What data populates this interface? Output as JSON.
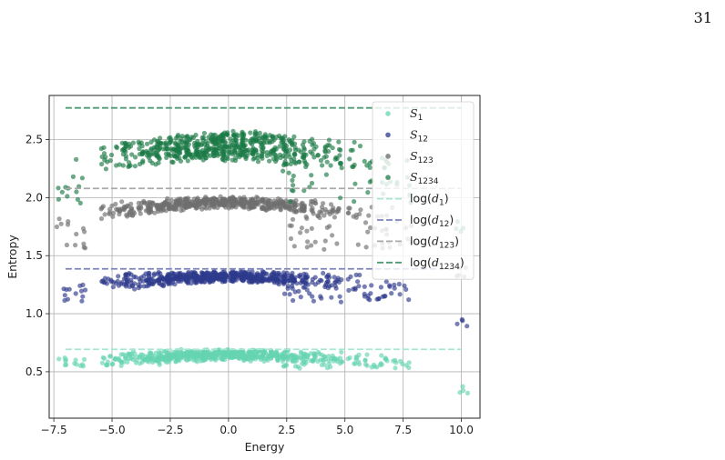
{
  "page": {
    "number": "31"
  },
  "chart_data": {
    "type": "scatter",
    "title": "",
    "xlabel": "Energy",
    "ylabel": "Entropy",
    "xlim": [
      -7.7,
      10.8
    ],
    "ylim": [
      0.1,
      2.88
    ],
    "xticks": [
      "-7.5",
      "-5.0",
      "-2.5",
      "0.0",
      "2.5",
      "5.0",
      "7.5",
      "10.0"
    ],
    "xtick_values": [
      -7.5,
      -5.0,
      -2.5,
      0.0,
      2.5,
      5.0,
      7.5,
      10.0
    ],
    "yticks": [
      "0.5",
      "1.0",
      "1.5",
      "2.0",
      "2.5"
    ],
    "ytick_values": [
      0.5,
      1.0,
      1.5,
      2.0,
      2.5
    ],
    "grid": true,
    "legend_position": "top-right",
    "series": [
      {
        "name": "S",
        "sub": "1",
        "kind": "scatter",
        "color": "#66d4b0",
        "levels": [
          0.66,
          0.62
        ],
        "level_max": 0.69,
        "base": 0.53
      },
      {
        "name": "S",
        "sub": "12",
        "kind": "scatter",
        "color": "#2e3a8c",
        "levels": [
          1.32,
          1.25
        ],
        "level_max": 1.386,
        "base": 1.1
      },
      {
        "name": "S",
        "sub": "123",
        "kind": "scatter",
        "color": "#6e6e6e",
        "levels": [
          1.93,
          1.85
        ],
        "level_max": 2.079,
        "base": 1.55
      },
      {
        "name": "S",
        "sub": "1234",
        "kind": "scatter",
        "color": "#1a7a45",
        "levels": [
          2.44,
          2.35
        ],
        "level_max": 2.77,
        "base": 1.95
      },
      {
        "name": "log(d",
        "sub": "1",
        "kind": "hline",
        "color": "#a6e6d2",
        "y": 0.693,
        "x": [
          -7.0,
          10.0
        ]
      },
      {
        "name": "log(d",
        "sub": "12",
        "kind": "hline",
        "color": "#7b82bd",
        "y": 1.386,
        "x": [
          -7.0,
          10.0
        ]
      },
      {
        "name": "log(d",
        "sub": "123",
        "kind": "hline",
        "color": "#a9a9a9",
        "y": 2.079,
        "x": [
          -7.0,
          10.0
        ]
      },
      {
        "name": "log(d",
        "sub": "1234",
        "kind": "hline",
        "color": "#4e9a74",
        "y": 2.773,
        "x": [
          -7.0,
          10.0
        ]
      }
    ],
    "energy_clusters": [
      -7.1,
      -6.4,
      -5.2,
      -4.6,
      -4.2,
      -3.6,
      -3.2,
      -2.8,
      -2.4,
      -2.0,
      -1.6,
      -1.2,
      -0.8,
      -0.4,
      0.0,
      0.4,
      0.8,
      1.2,
      1.7,
      2.2,
      2.6,
      3.0,
      3.5,
      4.1,
      4.6,
      5.4,
      6.1,
      6.6,
      7.0,
      7.6,
      10.0
    ]
  }
}
